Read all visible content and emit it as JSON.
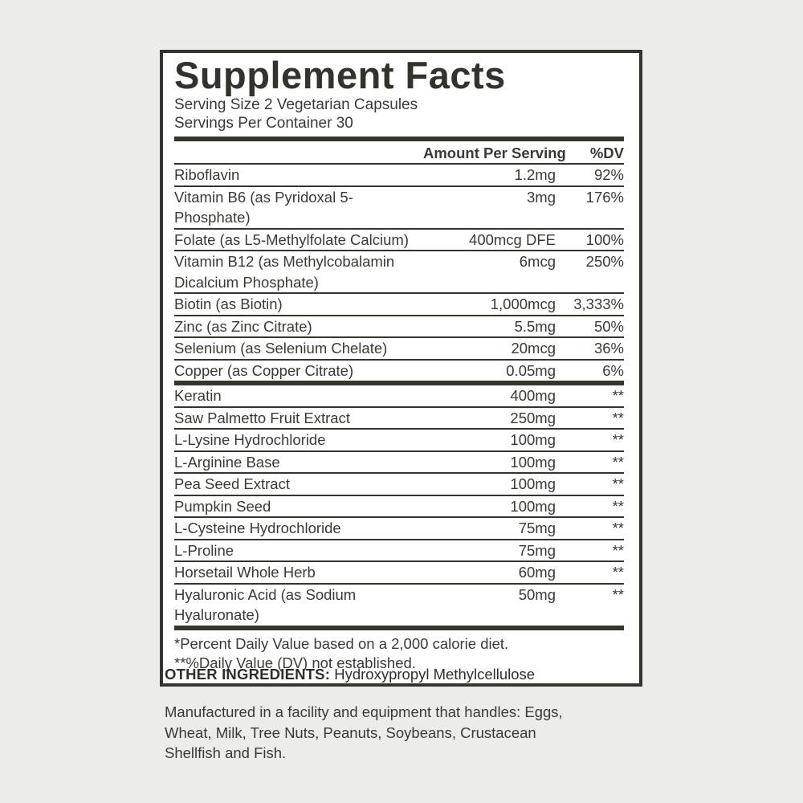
{
  "label": {
    "title": "Supplement Facts",
    "serving_size": "Serving Size 2 Vegetarian Capsules",
    "servings_per_container": "Servings Per Container 30",
    "header": {
      "amount": "Amount Per Serving",
      "dv": "%DV"
    },
    "section1": [
      {
        "name": "Riboflavin",
        "amount": "1.2mg",
        "dv": "92%"
      },
      {
        "name": "Vitamin B6 (as Pyridoxal 5-Phosphate)",
        "amount": "3mg",
        "dv": "176%"
      },
      {
        "name": "Folate (as L5-Methylfolate Calcium)",
        "amount": "400mcg DFE",
        "dv": "100%"
      },
      {
        "name": "Vitamin B12 (as Methylcobalamin",
        "name2": "Dicalcium Phosphate)",
        "amount": "6mcg",
        "dv": "250%"
      },
      {
        "name": "Biotin (as Biotin)",
        "amount": "1,000mcg",
        "dv": "3,333%"
      },
      {
        "name": "Zinc (as Zinc Citrate)",
        "amount": "5.5mg",
        "dv": "50%"
      },
      {
        "name": "Selenium (as Selenium Chelate)",
        "amount": "20mcg",
        "dv": "36%"
      },
      {
        "name": "Copper (as Copper Citrate)",
        "amount": "0.05mg",
        "dv": "6%"
      }
    ],
    "section2": [
      {
        "name": "Keratin",
        "amount": "400mg",
        "dv": "**"
      },
      {
        "name": "Saw Palmetto Fruit Extract",
        "amount": "250mg",
        "dv": "**"
      },
      {
        "name": "L-Lysine Hydrochloride",
        "amount": "100mg",
        "dv": "**"
      },
      {
        "name": "L-Arginine Base",
        "amount": "100mg",
        "dv": "**"
      },
      {
        "name": "Pea Seed Extract",
        "amount": "100mg",
        "dv": "**"
      },
      {
        "name": "Pumpkin Seed",
        "amount": "100mg",
        "dv": "**"
      },
      {
        "name": "L-Cysteine Hydrochloride",
        "amount": "75mg",
        "dv": "**"
      },
      {
        "name": "L-Proline",
        "amount": "75mg",
        "dv": "**"
      },
      {
        "name": "Horsetail Whole Herb",
        "amount": "60mg",
        "dv": "**"
      },
      {
        "name": "Hyaluronic Acid (as Sodium Hyaluronate)",
        "amount": "50mg",
        "dv": "**"
      }
    ],
    "footnotes": [
      "*Percent Daily Value based on a 2,000 calorie diet.",
      "**%Daily Value (DV) not established."
    ]
  },
  "below": {
    "other_ingredients_label": "OTHER INGREDIENTS:",
    "other_ingredients_value": "Hydroxypropyl Methylcellulose",
    "manufactured_lines": [
      "Manufactured in a facility and equipment that handles: Eggs,",
      "Wheat, Milk, Tree Nuts, Peanuts, Soybeans, Crustacean",
      "Shellfish and Fish."
    ]
  },
  "colors": {
    "text": "#3a3a35",
    "border": "#35352f",
    "panel_background": "#ffffff",
    "page_background": "#ececea"
  }
}
